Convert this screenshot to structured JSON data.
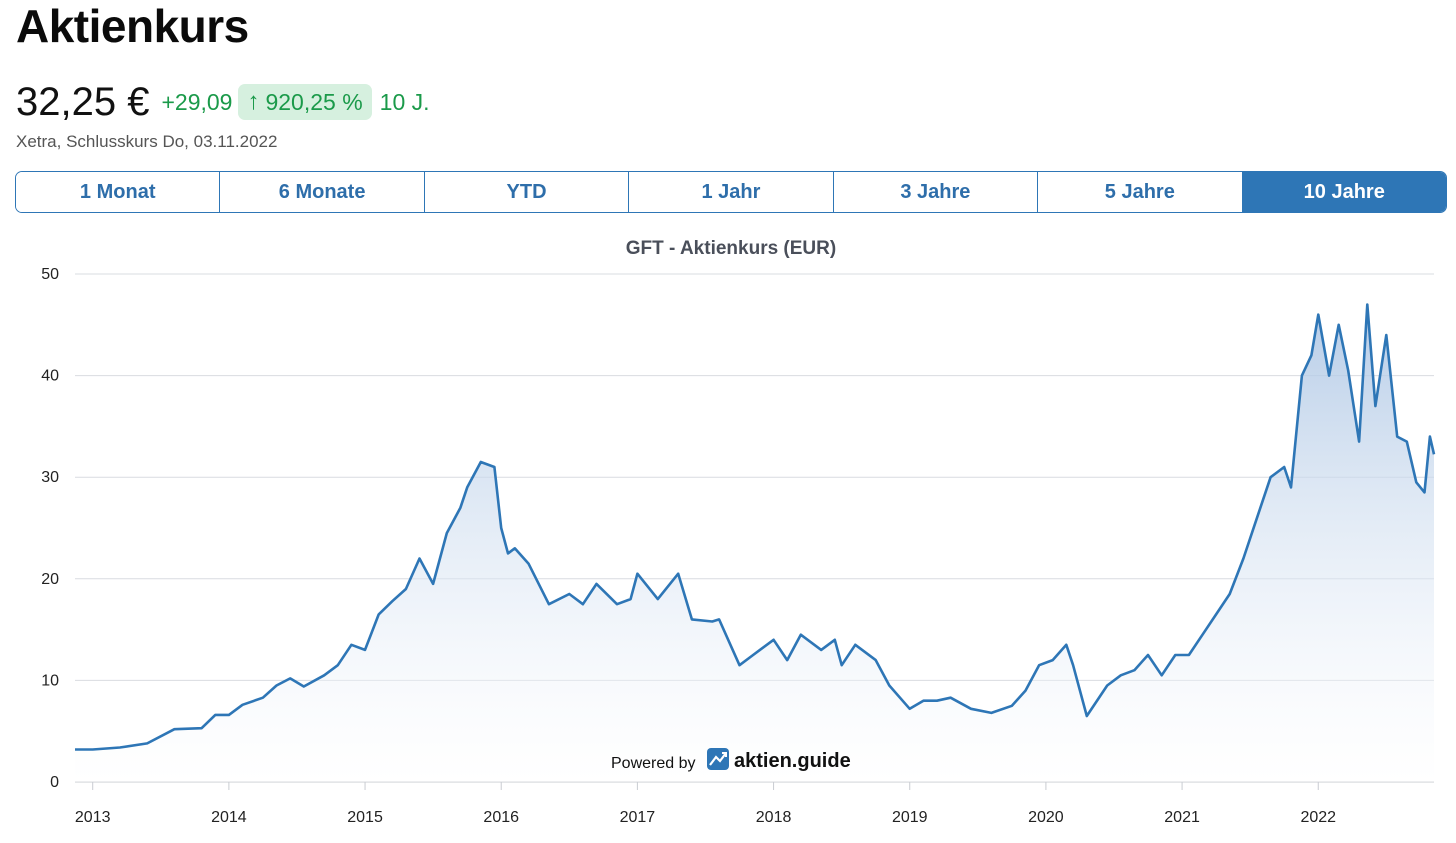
{
  "header": {
    "title": "Aktienkurs",
    "price": "32,25 €",
    "change_abs": "+29,09",
    "change_pct": "920,25 %",
    "period": "10 J.",
    "subtitle": "Xetra, Schlusskurs Do, 03.11.2022"
  },
  "colors": {
    "accent": "#2e76b6",
    "positive": "#1b9a4a",
    "positive_bg": "#d6f0df",
    "line": "#2e76b6"
  },
  "tabs": [
    {
      "label": "1 Monat",
      "active": false
    },
    {
      "label": "6 Monate",
      "active": false
    },
    {
      "label": "YTD",
      "active": false
    },
    {
      "label": "1 Jahr",
      "active": false
    },
    {
      "label": "3 Jahre",
      "active": false
    },
    {
      "label": "5 Jahre",
      "active": false
    },
    {
      "label": "10 Jahre",
      "active": true
    }
  ],
  "branding": {
    "powered_by": "Powered by",
    "name": "aktien.guide",
    "icon": "chart-trend-icon"
  },
  "chart_data": {
    "type": "area",
    "title": "GFT - Aktienkurs (EUR)",
    "xlabel": "",
    "ylabel": "",
    "ylim": [
      0,
      50
    ],
    "yticks": [
      0,
      10,
      20,
      30,
      40,
      50
    ],
    "xlim": [
      2012.87,
      2022.85
    ],
    "xticks": [
      "2013",
      "2014",
      "2015",
      "2016",
      "2017",
      "2018",
      "2019",
      "2020",
      "2021",
      "2022"
    ],
    "grid": true,
    "series": [
      {
        "values_x": [
          2012.87,
          2013.0,
          2013.2,
          2013.4,
          2013.6,
          2013.8,
          2013.9,
          2014.0,
          2014.1,
          2014.25,
          2014.35,
          2014.45,
          2014.55,
          2014.7,
          2014.8,
          2014.9,
          2015.0,
          2015.1,
          2015.2,
          2015.3,
          2015.4,
          2015.5,
          2015.6,
          2015.7,
          2015.75,
          2015.85,
          2015.95,
          2016.0,
          2016.05,
          2016.1,
          2016.2,
          2016.35,
          2016.5,
          2016.6,
          2016.7,
          2016.85,
          2016.95,
          2017.0,
          2017.15,
          2017.3,
          2017.4,
          2017.55,
          2017.6,
          2017.75,
          2017.85,
          2017.9,
          2018.0,
          2018.1,
          2018.2,
          2018.35,
          2018.45,
          2018.5,
          2018.6,
          2018.75,
          2018.85,
          2019.0,
          2019.1,
          2019.2,
          2019.3,
          2019.45,
          2019.6,
          2019.75,
          2019.85,
          2019.95,
          2020.05,
          2020.15,
          2020.2,
          2020.3,
          2020.45,
          2020.55,
          2020.65,
          2020.75,
          2020.85,
          2020.95,
          2021.05,
          2021.15,
          2021.25,
          2021.35,
          2021.45,
          2021.55,
          2021.65,
          2021.75,
          2021.8,
          2021.88,
          2021.95,
          2022.0,
          2022.08,
          2022.15,
          2022.22,
          2022.3,
          2022.36,
          2022.42,
          2022.5,
          2022.58,
          2022.65,
          2022.72,
          2022.78,
          2022.82,
          2022.85
        ],
        "values": [
          3.2,
          3.2,
          3.4,
          3.8,
          5.2,
          5.3,
          6.6,
          6.6,
          7.6,
          8.3,
          9.5,
          10.2,
          9.4,
          10.5,
          11.5,
          13.5,
          13.0,
          16.5,
          17.8,
          19.0,
          22.0,
          19.5,
          24.5,
          27.0,
          29.0,
          31.5,
          31.0,
          25.0,
          22.5,
          23.0,
          21.5,
          17.5,
          18.5,
          17.5,
          19.5,
          17.5,
          18.0,
          20.5,
          18.0,
          20.5,
          16.0,
          15.8,
          16.0,
          11.5,
          12.5,
          13.0,
          14.0,
          12.0,
          14.5,
          13.0,
          14.0,
          11.5,
          13.5,
          12.0,
          9.5,
          7.2,
          8.0,
          8.0,
          8.3,
          7.2,
          6.8,
          7.5,
          9.0,
          11.5,
          12.0,
          13.5,
          11.5,
          6.5,
          9.5,
          10.5,
          11.0,
          12.5,
          10.5,
          12.5,
          12.5,
          14.5,
          16.5,
          18.5,
          22.0,
          26.0,
          30.0,
          31.0,
          29.0,
          40.0,
          42.0,
          46.0,
          40.0,
          45.0,
          40.5,
          33.5,
          47.0,
          37.0,
          44.0,
          34.0,
          33.5,
          29.5,
          28.5,
          34.0,
          32.25
        ]
      }
    ]
  }
}
